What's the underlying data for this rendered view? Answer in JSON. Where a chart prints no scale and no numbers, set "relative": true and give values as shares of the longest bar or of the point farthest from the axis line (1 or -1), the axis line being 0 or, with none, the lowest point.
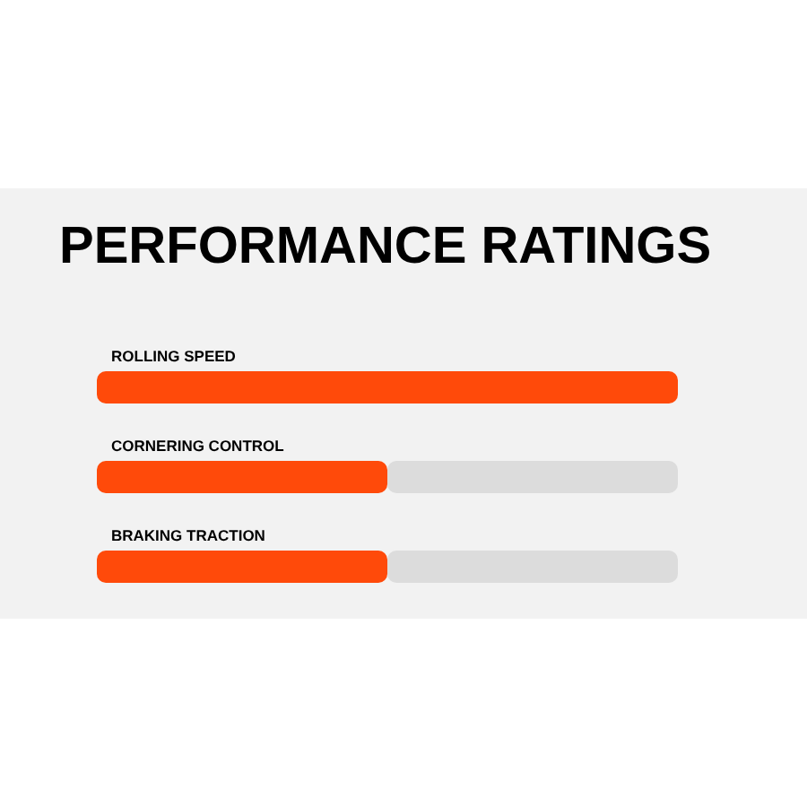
{
  "chart_data": {
    "type": "bar",
    "orientation": "horizontal",
    "relative": true,
    "stacked": true,
    "title": "PERFORMANCE RATINGS",
    "categories": [
      "ROLLING SPEED",
      "CORNERING CONTROL",
      "BRAKING TRACTION"
    ],
    "series": [
      {
        "color": "#ff4a0a",
        "values": [
          1,
          0.5,
          0.5
        ]
      },
      {
        "color": "#dcdcdc",
        "values": [
          0,
          0.5,
          0.5
        ]
      }
    ]
  }
}
